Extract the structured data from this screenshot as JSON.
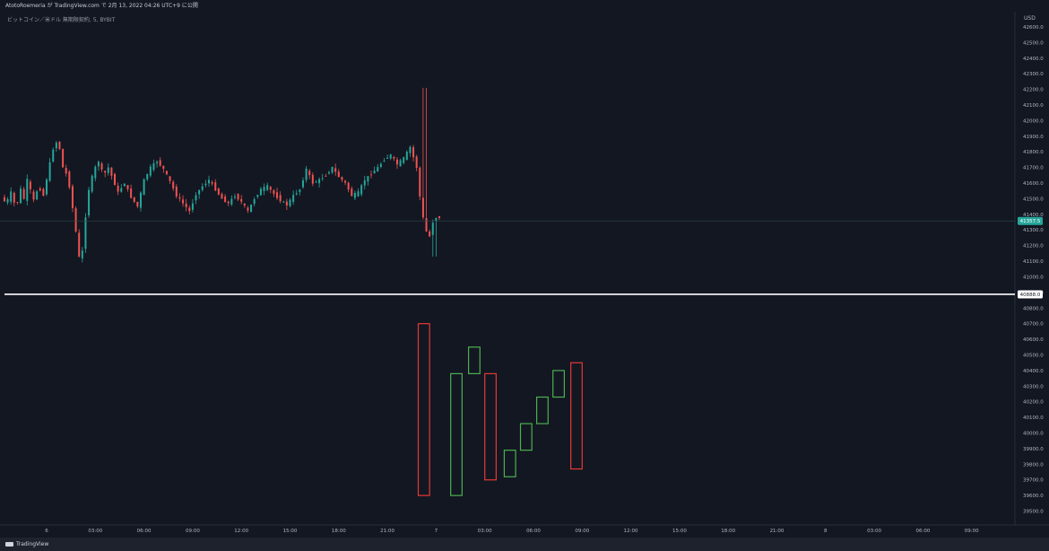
{
  "header": {
    "caption": "AtotoRoemeria が TradingView.com で 2月 13, 2022 04:26 UTC+9 に公開",
    "symbol_line": "ビットコイン／米ドル 無期限契約, 5, BYBIT"
  },
  "footer": {
    "brand": "TradingView"
  },
  "colors": {
    "up": "#26a69a",
    "down": "#ef5350",
    "box_up": "#4caf50",
    "box_down": "#e53935",
    "price_label_bg": "#26a69a"
  },
  "chart_data": {
    "type": "candlestick",
    "currency": "USD",
    "y_ticks": [
      42600.0,
      42500.0,
      42400.0,
      42300.0,
      42200.0,
      42100.0,
      42000.0,
      41900.0,
      41800.0,
      41700.0,
      41600.0,
      41500.0,
      41400.0,
      41300.0,
      41200.0,
      41100.0,
      41000.0,
      40900.0,
      40800.0,
      40700.0,
      40600.0,
      40500.0,
      40400.0,
      40300.0,
      40200.0,
      40100.0,
      40000.0,
      39900.0,
      39800.0,
      39700.0,
      39600.0,
      39500.0
    ],
    "ylim": [
      39440,
      42640
    ],
    "x_ticks": [
      "6",
      "03:00",
      "06:00",
      "09:00",
      "12:00",
      "15:00",
      "18:00",
      "21:00",
      "7",
      "03:00",
      "06:00",
      "09:00",
      "12:00",
      "15:00",
      "18:00",
      "21:00",
      "8",
      "03:00",
      "06:00",
      "09:00"
    ],
    "x_tick_hours": [
      0,
      3,
      6,
      9,
      12,
      15,
      18,
      21,
      24,
      27,
      30,
      33,
      36,
      39,
      42,
      45,
      48,
      51,
      54,
      57
    ],
    "price_line": 41357.5,
    "price_label": "41357.5",
    "horizontal_line": 40888.0,
    "horizontal_line_label": "40888.0",
    "price_path_hours": [
      -2.6,
      -2.3,
      -2.0,
      -1.7,
      -1.4,
      -1.2,
      -1.0,
      -0.6,
      -0.3,
      0.0,
      0.3,
      0.6,
      0.9,
      1.2,
      1.5,
      1.7,
      1.9,
      2.1,
      2.3,
      2.5,
      2.8,
      3.1,
      3.4,
      3.7,
      4.0,
      4.3,
      4.6,
      5.0,
      5.4,
      5.8,
      6.2,
      6.6,
      7.0,
      7.4,
      7.8,
      8.2,
      8.6,
      9.0,
      9.4,
      9.8,
      10.2,
      10.6,
      11.0,
      11.4,
      11.8,
      12.2,
      12.6,
      13.0,
      13.4,
      13.8,
      14.2,
      14.6,
      15.0,
      15.4,
      15.8,
      16.2,
      16.6,
      17.0,
      17.4,
      17.8,
      18.2,
      18.6,
      19.0,
      19.4,
      19.8,
      20.2,
      20.6,
      21.0,
      21.4,
      21.8,
      22.2,
      22.6,
      23.0,
      23.3,
      23.6,
      23.8,
      24.0,
      24.2
    ],
    "price_path": [
      41510,
      41470,
      41540,
      41440,
      41560,
      41500,
      41620,
      41490,
      41580,
      41520,
      41680,
      41820,
      41880,
      41700,
      41640,
      41520,
      41360,
      41220,
      41030,
      41300,
      41560,
      41680,
      41740,
      41650,
      41700,
      41620,
      41540,
      41600,
      41510,
      41450,
      41620,
      41700,
      41740,
      41690,
      41610,
      41520,
      41470,
      41420,
      41530,
      41580,
      41620,
      41560,
      41500,
      41470,
      41520,
      41480,
      41420,
      41500,
      41560,
      41580,
      41530,
      41490,
      41460,
      41520,
      41560,
      41690,
      41600,
      41620,
      41650,
      41700,
      41640,
      41600,
      41520,
      41540,
      41620,
      41660,
      41700,
      41750,
      41780,
      41720,
      41760,
      41830,
      41700,
      41420,
      41290,
      41260,
      41350,
      41380
    ],
    "candle_price_high": 42210,
    "candle_price_low": 41130,
    "boxes": [
      {
        "start_hour": 22.9,
        "end_hour": 23.6,
        "low": 39600,
        "high": 40700,
        "direction": "down"
      },
      {
        "start_hour": 24.9,
        "end_hour": 25.6,
        "low": 39600,
        "high": 40380,
        "direction": "up"
      },
      {
        "start_hour": 26.0,
        "end_hour": 26.7,
        "low": 40380,
        "high": 40550,
        "direction": "up"
      },
      {
        "start_hour": 27.0,
        "end_hour": 27.7,
        "low": 39700,
        "high": 40380,
        "direction": "down"
      },
      {
        "start_hour": 28.2,
        "end_hour": 28.9,
        "low": 39720,
        "high": 39890,
        "direction": "up"
      },
      {
        "start_hour": 29.2,
        "end_hour": 29.9,
        "low": 39890,
        "high": 40060,
        "direction": "up"
      },
      {
        "start_hour": 30.2,
        "end_hour": 30.9,
        "low": 40060,
        "high": 40230,
        "direction": "up"
      },
      {
        "start_hour": 31.2,
        "end_hour": 31.9,
        "low": 40230,
        "high": 40400,
        "direction": "up"
      },
      {
        "start_hour": 32.3,
        "end_hour": 33.0,
        "low": 39770,
        "high": 40450,
        "direction": "down"
      }
    ]
  }
}
